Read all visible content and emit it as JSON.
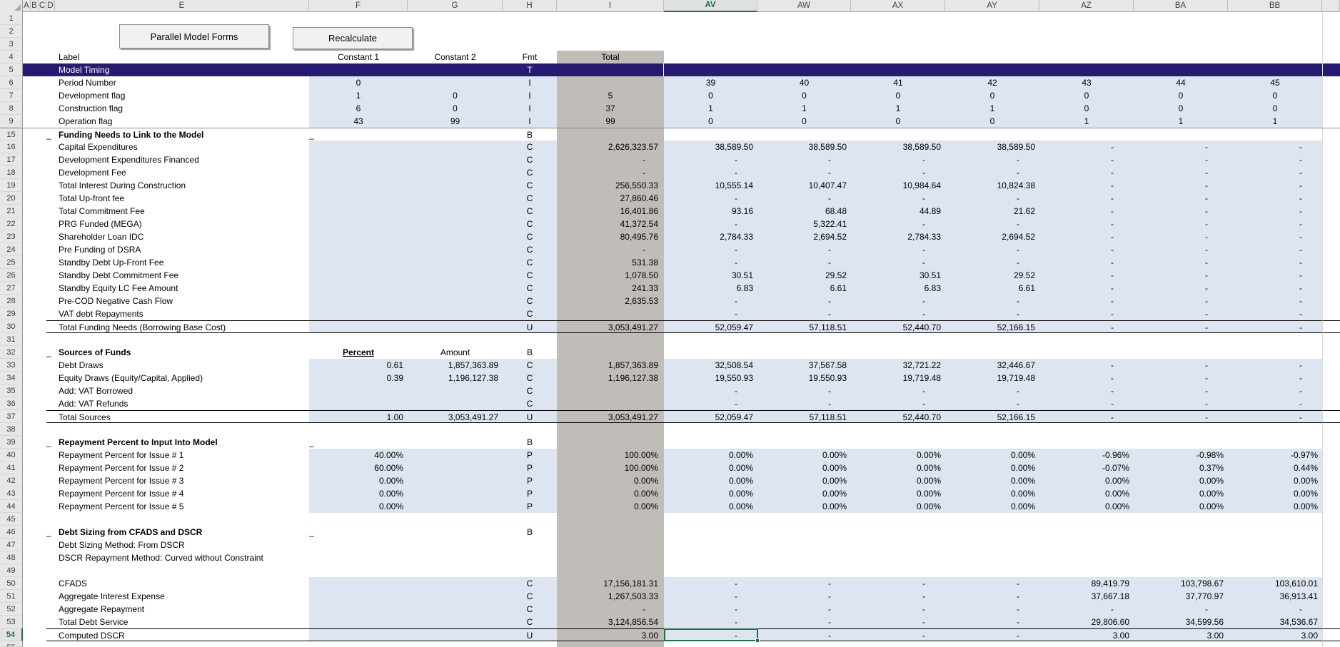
{
  "app": {
    "buttons": {
      "parallel": "Parallel Model Forms",
      "recalculate": "Recalculate"
    }
  },
  "colors": {
    "band_navy": "#261A73",
    "input_blue": "#DCE5F0",
    "total_gray": "#C0BDB8",
    "selection_green": "#1E7145"
  },
  "columns": {
    "letters": [
      "A",
      "B",
      "C",
      "D",
      "E",
      "F",
      "G",
      "H",
      "I",
      "AV",
      "AW",
      "AX",
      "AY",
      "AZ",
      "BA",
      "BB",
      ""
    ],
    "selected": "AV"
  },
  "selection": {
    "cell": "AV54",
    "row": "54",
    "col": "AV"
  },
  "header_row": {
    "label": "Label",
    "c1": "Constant 1",
    "c2": "Constant 2",
    "fmt": "Fmt",
    "total": "Total"
  },
  "rows": [
    {
      "n": "1",
      "t": "blank"
    },
    {
      "n": "2",
      "t": "blank"
    },
    {
      "n": "3",
      "t": "blank"
    },
    {
      "n": "4",
      "t": "head"
    },
    {
      "n": "5",
      "t": "band",
      "label": "Model Timing",
      "fmt": "T"
    },
    {
      "n": "6",
      "t": "flags",
      "label": "Period Number",
      "f": "0",
      "g": "",
      "fmt": "I",
      "total": "",
      "p": [
        "39",
        "40",
        "41",
        "42",
        "43",
        "44",
        "45"
      ]
    },
    {
      "n": "7",
      "t": "flags",
      "label": "Development flag",
      "f": "1",
      "g": "0",
      "fmt": "I",
      "total": "5",
      "p": [
        "0",
        "0",
        "0",
        "0",
        "0",
        "0",
        "0"
      ]
    },
    {
      "n": "8",
      "t": "flags",
      "label": "Construction flag",
      "f": "6",
      "g": "0",
      "fmt": "I",
      "total": "37",
      "p": [
        "1",
        "1",
        "1",
        "1",
        "0",
        "0",
        "0"
      ]
    },
    {
      "n": "9",
      "t": "flags",
      "label": "Operation flag",
      "f": "43",
      "g": "99",
      "fmt": "I",
      "total": "99",
      "p": [
        "0",
        "0",
        "0",
        "0",
        "1",
        "1",
        "1"
      ]
    },
    {
      "n": "15",
      "t": "section",
      "label": "Funding Needs to Link to the Model",
      "fmt": "B",
      "fu": true,
      "hiddenAbove": true
    },
    {
      "n": "16",
      "t": "data",
      "label": "Capital Expenditures",
      "fmt": "C",
      "total": "2,626,323.57",
      "p": [
        "38,589.50",
        "38,589.50",
        "38,589.50",
        "38,589.50",
        "-",
        "-",
        "-"
      ]
    },
    {
      "n": "17",
      "t": "data",
      "label": "Development Expenditures Financed",
      "fmt": "C",
      "total": "-",
      "p": [
        "-",
        "-",
        "-",
        "-",
        "-",
        "-",
        "-"
      ]
    },
    {
      "n": "18",
      "t": "data",
      "label": "Development Fee",
      "fmt": "C",
      "total": "-",
      "p": [
        "-",
        "-",
        "-",
        "-",
        "-",
        "-",
        "-"
      ]
    },
    {
      "n": "19",
      "t": "data",
      "label": "Total Interest During Construction",
      "fmt": "C",
      "total": "256,550.33",
      "p": [
        "10,555.14",
        "10,407.47",
        "10,984.64",
        "10,824.38",
        "-",
        "-",
        "-"
      ]
    },
    {
      "n": "20",
      "t": "data",
      "label": "Total Up-front fee",
      "fmt": "C",
      "total": "27,860.46",
      "p": [
        "-",
        "-",
        "-",
        "-",
        "-",
        "-",
        "-"
      ]
    },
    {
      "n": "21",
      "t": "data",
      "label": "Total Commitment Fee",
      "fmt": "C",
      "total": "16,401.86",
      "p": [
        "93.16",
        "68.48",
        "44.89",
        "21.62",
        "-",
        "-",
        "-"
      ]
    },
    {
      "n": "22",
      "t": "data",
      "label": "PRG Funded (MEGA)",
      "fmt": "C",
      "total": "41,372.54",
      "p": [
        "-",
        "5,322.41",
        "-",
        "-",
        "-",
        "-",
        "-"
      ]
    },
    {
      "n": "23",
      "t": "data",
      "label": "Shareholder Loan IDC",
      "fmt": "C",
      "total": "80,495.76",
      "p": [
        "2,784.33",
        "2,694.52",
        "2,784.33",
        "2,694.52",
        "-",
        "-",
        "-"
      ]
    },
    {
      "n": "24",
      "t": "data",
      "label": "Pre Funding of DSRA",
      "fmt": "C",
      "total": "-",
      "p": [
        "-",
        "-",
        "-",
        "-",
        "-",
        "-",
        "-"
      ]
    },
    {
      "n": "25",
      "t": "data",
      "label": "Standby Debt Up-Front Fee",
      "fmt": "C",
      "total": "531.38",
      "p": [
        "-",
        "-",
        "-",
        "-",
        "-",
        "-",
        "-"
      ]
    },
    {
      "n": "26",
      "t": "data",
      "label": "Standby Debt Commitment Fee",
      "fmt": "C",
      "total": "1,078.50",
      "p": [
        "30.51",
        "29.52",
        "30.51",
        "29.52",
        "-",
        "-",
        "-"
      ]
    },
    {
      "n": "27",
      "t": "data",
      "label": "Standby Equity LC Fee Amount",
      "fmt": "C",
      "total": "241.33",
      "p": [
        "6.83",
        "6.61",
        "6.83",
        "6.61",
        "-",
        "-",
        "-"
      ]
    },
    {
      "n": "28",
      "t": "data",
      "label": "Pre-COD Negative Cash Flow",
      "fmt": "C",
      "total": "2,635.53",
      "p": [
        "-",
        "-",
        "-",
        "-",
        "-",
        "-",
        "-"
      ]
    },
    {
      "n": "29",
      "t": "data",
      "label": "VAT debt Repayments",
      "fmt": "C",
      "total": "",
      "p": [
        "-",
        "-",
        "-",
        "-",
        "-",
        "-",
        "-"
      ]
    },
    {
      "n": "30",
      "t": "total",
      "label": "Total Funding Needs (Borrowing Base Cost)",
      "fmt": "U",
      "total": "3,053,491.27",
      "p": [
        "52,059.47",
        "57,118.51",
        "52,440.70",
        "52,166.15",
        "-",
        "-",
        "-"
      ]
    },
    {
      "n": "31",
      "t": "blank"
    },
    {
      "n": "32",
      "t": "section",
      "label": "Sources of Funds",
      "fmt": "B",
      "f": "Percent",
      "g": "Amount"
    },
    {
      "n": "33",
      "t": "data",
      "label": "Debt Draws",
      "f": "0.61",
      "g": "1,857,363.89",
      "fmt": "C",
      "total": "1,857,363.89",
      "p": [
        "32,508.54",
        "37,567.58",
        "32,721.22",
        "32,446.67",
        "-",
        "-",
        "-"
      ]
    },
    {
      "n": "34",
      "t": "data",
      "label": "Equity Draws (Equity/Capital, Applied)",
      "f": "0.39",
      "g": "1,196,127.38",
      "fmt": "C",
      "total": "1,196,127.38",
      "p": [
        "19,550.93",
        "19,550.93",
        "19,719.48",
        "19,719.48",
        "-",
        "-",
        "-"
      ]
    },
    {
      "n": "35",
      "t": "data",
      "label": "Add: VAT Borrowed",
      "fmt": "C",
      "total": "",
      "p": [
        "-",
        "-",
        "-",
        "-",
        "-",
        "-",
        "-"
      ]
    },
    {
      "n": "36",
      "t": "data",
      "label": "Add: VAT Refunds",
      "fmt": "C",
      "total": "",
      "p": [
        "-",
        "-",
        "-",
        "-",
        "-",
        "-",
        "-"
      ]
    },
    {
      "n": "37",
      "t": "total",
      "label": "Total Sources",
      "f": "1.00",
      "g": "3,053,491.27",
      "fmt": "U",
      "total": "3,053,491.27",
      "p": [
        "52,059.47",
        "57,118.51",
        "52,440.70",
        "52,166.15",
        "-",
        "-",
        "-"
      ]
    },
    {
      "n": "38",
      "t": "blank"
    },
    {
      "n": "39",
      "t": "section",
      "label": "Repayment Percent to Input Into Model",
      "fmt": "B",
      "fu": true
    },
    {
      "n": "40",
      "t": "data",
      "label": "Repayment Percent for Issue # 1",
      "f": "40.00%",
      "fmt": "P",
      "total": "100.00%",
      "p": [
        "0.00%",
        "0.00%",
        "0.00%",
        "0.00%",
        "-0.96%",
        "-0.98%",
        "-0.97%"
      ]
    },
    {
      "n": "41",
      "t": "data",
      "label": "Repayment Percent for Issue # 2",
      "f": "60.00%",
      "fmt": "P",
      "total": "100.00%",
      "p": [
        "0.00%",
        "0.00%",
        "0.00%",
        "0.00%",
        "-0.07%",
        "0.37%",
        "0.44%"
      ]
    },
    {
      "n": "42",
      "t": "data",
      "label": "Repayment Percent for Issue # 3",
      "f": "0.00%",
      "fmt": "P",
      "total": "0.00%",
      "p": [
        "0.00%",
        "0.00%",
        "0.00%",
        "0.00%",
        "0.00%",
        "0.00%",
        "0.00%"
      ]
    },
    {
      "n": "43",
      "t": "data",
      "label": "Repayment Percent for Issue # 4",
      "f": "0.00%",
      "fmt": "P",
      "total": "0.00%",
      "p": [
        "0.00%",
        "0.00%",
        "0.00%",
        "0.00%",
        "0.00%",
        "0.00%",
        "0.00%"
      ]
    },
    {
      "n": "44",
      "t": "data",
      "label": "Repayment Percent for Issue # 5",
      "f": "0.00%",
      "fmt": "P",
      "total": "0.00%",
      "p": [
        "0.00%",
        "0.00%",
        "0.00%",
        "0.00%",
        "0.00%",
        "0.00%",
        "0.00%"
      ]
    },
    {
      "n": "45",
      "t": "blank"
    },
    {
      "n": "46",
      "t": "section",
      "label": "Debt Sizing from CFADS and DSCR",
      "fmt": "B",
      "fu": true
    },
    {
      "n": "47",
      "t": "text",
      "label": "Debt Sizing Method: From DSCR"
    },
    {
      "n": "48",
      "t": "text",
      "label": "DSCR Repayment Method: Curved without Constraint"
    },
    {
      "n": "49",
      "t": "blank"
    },
    {
      "n": "50",
      "t": "data",
      "label": "CFADS",
      "fmt": "C",
      "total": "17,156,181.31",
      "p": [
        "-",
        "-",
        "-",
        "-",
        "89,419.79",
        "103,798.67",
        "103,610.01"
      ]
    },
    {
      "n": "51",
      "t": "data",
      "label": "Aggregate Interest Expense",
      "fmt": "C",
      "total": "1,267,503.33",
      "p": [
        "-",
        "-",
        "-",
        "-",
        "37,667.18",
        "37,770.97",
        "36,913.41"
      ]
    },
    {
      "n": "52",
      "t": "data",
      "label": "Aggregate Repayment",
      "fmt": "C",
      "total": "-",
      "p": [
        "-",
        "-",
        "-",
        "-",
        "-",
        "-",
        "-"
      ]
    },
    {
      "n": "53",
      "t": "data",
      "label": "Total Debt Service",
      "fmt": "C",
      "total": "3,124,856.54",
      "p": [
        "-",
        "-",
        "-",
        "-",
        "29,806.60",
        "34,599.56",
        "34,536.67"
      ]
    },
    {
      "n": "54",
      "t": "total",
      "label": "Computed DSCR",
      "fmt": "U",
      "total": "3.00",
      "p": [
        "-",
        "-",
        "-",
        "-",
        "3.00",
        "3.00",
        "3.00"
      ],
      "sel": 0
    }
  ],
  "partial_row": "55"
}
